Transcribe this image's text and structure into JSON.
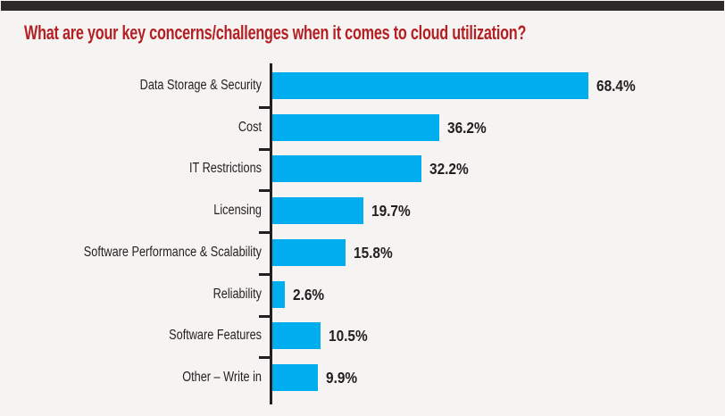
{
  "chart_data": {
    "type": "bar",
    "orientation": "horizontal",
    "title": "What are your key concerns/challenges when it comes to cloud utilization?",
    "categories": [
      "Data Storage & Security",
      "Cost",
      "IT Restrictions",
      "Licensing",
      "Software Performance & Scalability",
      "Reliability",
      "Software Features",
      "Other – Write in"
    ],
    "values": [
      68.4,
      36.2,
      32.2,
      19.7,
      15.8,
      2.6,
      10.5,
      9.9
    ],
    "value_labels": [
      "68.4%",
      "36.2%",
      "32.2%",
      "19.7%",
      "15.8%",
      "2.6%",
      "10.5%",
      "9.9%"
    ],
    "unit": "%",
    "xlim": [
      0,
      70
    ],
    "grid": false,
    "legend": false,
    "bar_color": "#00AEEF",
    "axis_color": "#231f20",
    "label_color": "#231f20",
    "title_color": "#b41f24",
    "background_color": "#f5f4f2",
    "topbar_color": "#2c2b2a"
  }
}
